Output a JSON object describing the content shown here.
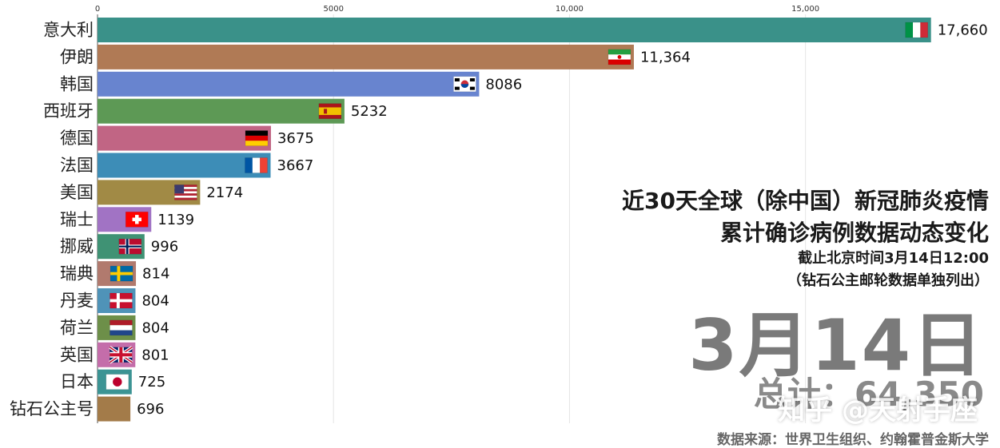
{
  "chart_data": {
    "type": "bar",
    "orientation": "horizontal",
    "categories": [
      "意大利",
      "伊朗",
      "韩国",
      "西班牙",
      "德国",
      "法国",
      "美国",
      "瑞士",
      "挪威",
      "瑞典",
      "丹麦",
      "荷兰",
      "英国",
      "日本",
      "钻石公主号"
    ],
    "values": [
      17660,
      11364,
      8086,
      5232,
      3675,
      3667,
      2174,
      1139,
      996,
      814,
      804,
      804,
      801,
      725,
      696
    ],
    "value_labels": [
      "17,660",
      "11,364",
      "8086",
      "5232",
      "3675",
      "3667",
      "2174",
      "1139",
      "996",
      "814",
      "804",
      "804",
      "801",
      "725",
      "696"
    ],
    "x_ticks": [
      0,
      5000,
      10000,
      15000
    ],
    "x_tick_labels": [
      "0",
      "5000",
      "10,000",
      "15,000"
    ],
    "xlim": [
      0,
      18800
    ],
    "grid": true,
    "bar_colors": [
      "#3a9189",
      "#b07a55",
      "#6884cf",
      "#5d9955",
      "#c16584",
      "#3d8db7",
      "#a18a45",
      "#a173c4",
      "#3f9274",
      "#b17a6e",
      "#4f93b8",
      "#6d8f49",
      "#c46daa",
      "#3c9494",
      "#a37b49"
    ],
    "flags": [
      "italy-flag",
      "iran-flag",
      "south-korea-flag",
      "spain-flag",
      "germany-flag",
      "france-flag",
      "usa-flag",
      "switzerland-flag",
      "norway-flag",
      "sweden-flag",
      "denmark-flag",
      "netherlands-flag",
      "uk-flag",
      "japan-flag",
      ""
    ]
  },
  "info": {
    "title_line1": "近30天全球（除中国）新冠肺炎疫情",
    "title_line2": "累计确诊病例数据动态变化",
    "cutoff": "截止北京时间3月14日12:00",
    "note": "（钻石公主邮轮数据单独列出）",
    "date": "3月14日",
    "total": "总计：64,350",
    "watermark": "知乎 @天射手座",
    "source": "数据来源：世界卫生组织、约翰霍普金斯大学"
  }
}
